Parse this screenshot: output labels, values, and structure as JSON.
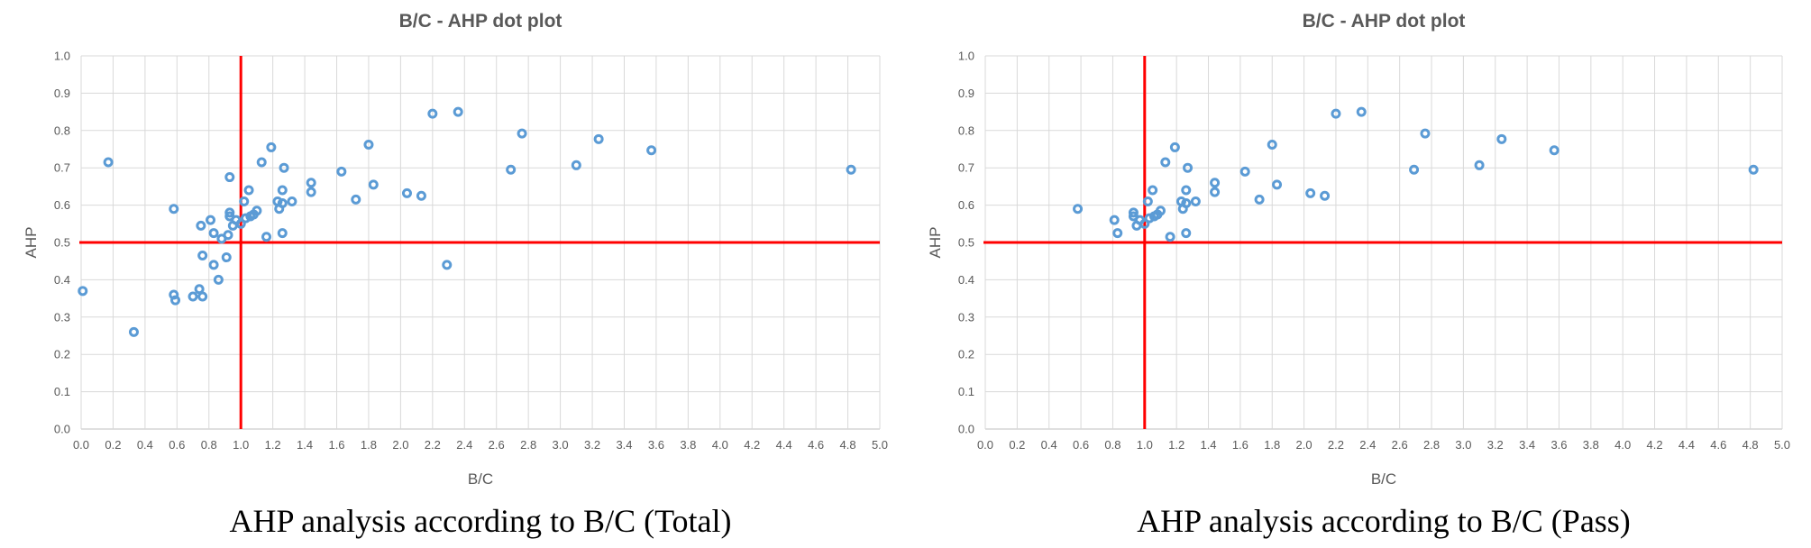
{
  "chart_data": [
    {
      "type": "scatter",
      "title": "B/C - AHP dot plot",
      "xlabel": "B/C",
      "ylabel": "AHP",
      "xlim": [
        0,
        5
      ],
      "ylim": [
        0,
        1
      ],
      "xticks": [
        "0.0",
        "0.2",
        "0.4",
        "0.6",
        "0.8",
        "1.0",
        "1.2",
        "1.4",
        "1.6",
        "1.8",
        "2.0",
        "2.2",
        "2.4",
        "2.6",
        "2.8",
        "3.0",
        "3.2",
        "3.4",
        "3.6",
        "3.8",
        "4.0",
        "4.2",
        "4.4",
        "4.6",
        "4.8",
        "5.0"
      ],
      "yticks": [
        "0.0",
        "0.1",
        "0.2",
        "0.3",
        "0.4",
        "0.5",
        "0.6",
        "0.7",
        "0.8",
        "0.9",
        "1.0"
      ],
      "grid": true,
      "reference_lines": {
        "x": 1.0,
        "y": 0.5,
        "color": "#ff0000"
      },
      "marker_color": "#5b9bd5",
      "caption": "AHP analysis according to B/C (Total)",
      "points": [
        {
          "x": 0.01,
          "y": 0.37
        },
        {
          "x": 0.17,
          "y": 0.715
        },
        {
          "x": 0.33,
          "y": 0.26
        },
        {
          "x": 0.58,
          "y": 0.59
        },
        {
          "x": 0.58,
          "y": 0.36
        },
        {
          "x": 0.59,
          "y": 0.345
        },
        {
          "x": 0.7,
          "y": 0.355
        },
        {
          "x": 0.74,
          "y": 0.375
        },
        {
          "x": 0.76,
          "y": 0.355
        },
        {
          "x": 0.76,
          "y": 0.465
        },
        {
          "x": 0.75,
          "y": 0.545
        },
        {
          "x": 0.81,
          "y": 0.56
        },
        {
          "x": 0.83,
          "y": 0.44
        },
        {
          "x": 0.83,
          "y": 0.525
        },
        {
          "x": 0.86,
          "y": 0.4
        },
        {
          "x": 0.88,
          "y": 0.51
        },
        {
          "x": 0.91,
          "y": 0.46
        },
        {
          "x": 0.92,
          "y": 0.52
        },
        {
          "x": 0.93,
          "y": 0.58
        },
        {
          "x": 0.93,
          "y": 0.57
        },
        {
          "x": 0.93,
          "y": 0.675
        },
        {
          "x": 0.95,
          "y": 0.545
        },
        {
          "x": 0.97,
          "y": 0.56
        },
        {
          "x": 1.0,
          "y": 0.55
        },
        {
          "x": 1.02,
          "y": 0.61
        },
        {
          "x": 1.03,
          "y": 0.565
        },
        {
          "x": 1.05,
          "y": 0.64
        },
        {
          "x": 1.06,
          "y": 0.57
        },
        {
          "x": 1.08,
          "y": 0.575
        },
        {
          "x": 1.1,
          "y": 0.585
        },
        {
          "x": 1.13,
          "y": 0.715
        },
        {
          "x": 1.16,
          "y": 0.515
        },
        {
          "x": 1.19,
          "y": 0.755
        },
        {
          "x": 1.23,
          "y": 0.61
        },
        {
          "x": 1.24,
          "y": 0.59
        },
        {
          "x": 1.26,
          "y": 0.605
        },
        {
          "x": 1.26,
          "y": 0.64
        },
        {
          "x": 1.26,
          "y": 0.525
        },
        {
          "x": 1.27,
          "y": 0.7
        },
        {
          "x": 1.32,
          "y": 0.61
        },
        {
          "x": 1.44,
          "y": 0.66
        },
        {
          "x": 1.44,
          "y": 0.635
        },
        {
          "x": 1.63,
          "y": 0.69
        },
        {
          "x": 1.72,
          "y": 0.615
        },
        {
          "x": 1.8,
          "y": 0.762
        },
        {
          "x": 1.83,
          "y": 0.655
        },
        {
          "x": 2.04,
          "y": 0.632
        },
        {
          "x": 2.13,
          "y": 0.625
        },
        {
          "x": 2.2,
          "y": 0.845
        },
        {
          "x": 2.29,
          "y": 0.44
        },
        {
          "x": 2.36,
          "y": 0.85
        },
        {
          "x": 2.69,
          "y": 0.695
        },
        {
          "x": 2.76,
          "y": 0.792
        },
        {
          "x": 3.1,
          "y": 0.707
        },
        {
          "x": 3.24,
          "y": 0.777
        },
        {
          "x": 3.57,
          "y": 0.747
        },
        {
          "x": 4.82,
          "y": 0.695
        }
      ]
    },
    {
      "type": "scatter",
      "title": "B/C - AHP dot plot",
      "xlabel": "B/C",
      "ylabel": "AHP",
      "xlim": [
        0,
        5
      ],
      "ylim": [
        0,
        1
      ],
      "xticks": [
        "0.0",
        "0.2",
        "0.4",
        "0.6",
        "0.8",
        "1.0",
        "1.2",
        "1.4",
        "1.6",
        "1.8",
        "2.0",
        "2.2",
        "2.4",
        "2.6",
        "2.8",
        "3.0",
        "3.2",
        "3.4",
        "3.6",
        "3.8",
        "4.0",
        "4.2",
        "4.4",
        "4.6",
        "4.8",
        "5.0"
      ],
      "yticks": [
        "0.0",
        "0.1",
        "0.2",
        "0.3",
        "0.4",
        "0.5",
        "0.6",
        "0.7",
        "0.8",
        "0.9",
        "1.0"
      ],
      "grid": true,
      "reference_lines": {
        "x": 1.0,
        "y": 0.5,
        "color": "#ff0000"
      },
      "marker_color": "#5b9bd5",
      "caption": "AHP analysis according to B/C (Pass)",
      "points": [
        {
          "x": 0.58,
          "y": 0.59
        },
        {
          "x": 0.81,
          "y": 0.56
        },
        {
          "x": 0.83,
          "y": 0.525
        },
        {
          "x": 0.93,
          "y": 0.58
        },
        {
          "x": 0.93,
          "y": 0.57
        },
        {
          "x": 0.95,
          "y": 0.545
        },
        {
          "x": 0.97,
          "y": 0.56
        },
        {
          "x": 1.0,
          "y": 0.55
        },
        {
          "x": 1.02,
          "y": 0.61
        },
        {
          "x": 1.03,
          "y": 0.565
        },
        {
          "x": 1.05,
          "y": 0.64
        },
        {
          "x": 1.06,
          "y": 0.57
        },
        {
          "x": 1.08,
          "y": 0.575
        },
        {
          "x": 1.1,
          "y": 0.585
        },
        {
          "x": 1.13,
          "y": 0.715
        },
        {
          "x": 1.16,
          "y": 0.515
        },
        {
          "x": 1.19,
          "y": 0.755
        },
        {
          "x": 1.23,
          "y": 0.61
        },
        {
          "x": 1.24,
          "y": 0.59
        },
        {
          "x": 1.26,
          "y": 0.605
        },
        {
          "x": 1.26,
          "y": 0.64
        },
        {
          "x": 1.26,
          "y": 0.525
        },
        {
          "x": 1.27,
          "y": 0.7
        },
        {
          "x": 1.32,
          "y": 0.61
        },
        {
          "x": 1.44,
          "y": 0.66
        },
        {
          "x": 1.44,
          "y": 0.635
        },
        {
          "x": 1.63,
          "y": 0.69
        },
        {
          "x": 1.72,
          "y": 0.615
        },
        {
          "x": 1.8,
          "y": 0.762
        },
        {
          "x": 1.83,
          "y": 0.655
        },
        {
          "x": 2.04,
          "y": 0.632
        },
        {
          "x": 2.13,
          "y": 0.625
        },
        {
          "x": 2.2,
          "y": 0.845
        },
        {
          "x": 2.36,
          "y": 0.85
        },
        {
          "x": 2.69,
          "y": 0.695
        },
        {
          "x": 2.76,
          "y": 0.792
        },
        {
          "x": 3.1,
          "y": 0.707
        },
        {
          "x": 3.24,
          "y": 0.777
        },
        {
          "x": 3.57,
          "y": 0.747
        },
        {
          "x": 4.82,
          "y": 0.695
        }
      ]
    }
  ]
}
